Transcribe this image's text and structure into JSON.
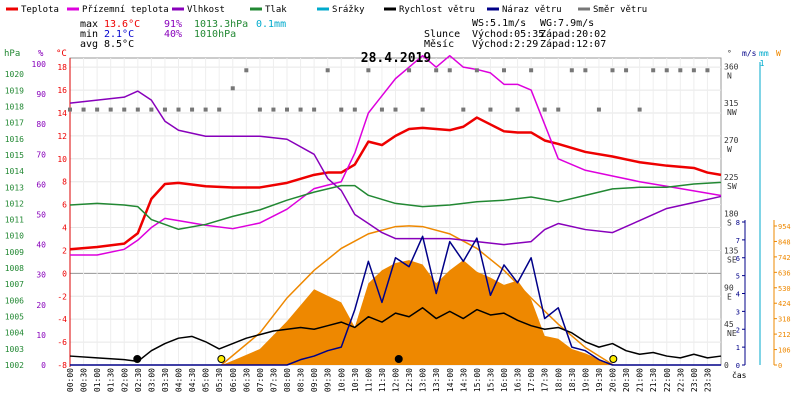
{
  "legend": [
    {
      "label": "Teplota",
      "color": "#ee0000"
    },
    {
      "label": "Přízemní teplota",
      "color": "#dd00dd"
    },
    {
      "label": "Vlhkost",
      "color": "#8800bb"
    },
    {
      "label": "Tlak",
      "color": "#228833"
    },
    {
      "label": "Srážky",
      "color": "#00aacc"
    },
    {
      "label": "Rychlost větru",
      "color": "#000000"
    },
    {
      "label": "Náraz větru",
      "color": "#000088"
    },
    {
      "label": "Směr větru",
      "color": "#777777"
    }
  ],
  "stats": {
    "max_label": "max",
    "max_temp": "13.6°C",
    "max_hum": "91%",
    "max_press": "1013.3hPa",
    "max_rain": "0.1mm",
    "min_label": "min",
    "min_temp": "2.1°C",
    "min_hum": "40%",
    "min_press": "1010hPa",
    "avg_label": "avg",
    "avg_temp": "8.5°C"
  },
  "wind_info": {
    "ws": "WS:5.1m/s",
    "wg": "WG:7.9m/s"
  },
  "sun": {
    "label": "Slunce",
    "rise": "Východ:05:35",
    "set": "Západ:20:02"
  },
  "moon": {
    "label": "Měsíc",
    "rise": "Východ:2:29",
    "set": "Západ:12:07"
  },
  "date_title": "28.4.2019",
  "axes": {
    "hpa_unit": "hPa",
    "pct_unit": "%",
    "c_unit": "°C",
    "dir_unit": "°",
    "ms_unit": "m/s",
    "mm_unit": "mm",
    "w_unit": "W",
    "x_label": "čas",
    "hpa_ticks": [
      "1020",
      "1019",
      "1018",
      "1017",
      "1016",
      "1015",
      "1014",
      "1013",
      "1012",
      "1011",
      "1010",
      "1009",
      "1008",
      "1007",
      "1006",
      "1005",
      "1004",
      "1003",
      "1002"
    ],
    "pct_ticks": [
      "100",
      "90",
      "80",
      "70",
      "60",
      "50",
      "40",
      "30",
      "20",
      "10",
      "0"
    ],
    "c_ticks": [
      "18",
      "16",
      "14",
      "12",
      "10",
      "8",
      "6",
      "4",
      "2",
      "0",
      "-2",
      "-4",
      "-6",
      "-8"
    ],
    "dir_ticks": [
      "360\nN",
      "315\nNW",
      "270\nW",
      "225\nSW",
      "180\nS",
      "135\nSE",
      "90\nE",
      "45\nNE",
      "0"
    ],
    "ms_ticks": [
      "8",
      "7",
      "6",
      "5",
      "4",
      "3",
      "2",
      "1",
      "0"
    ],
    "mm_ticks": [
      "1"
    ],
    "w_ticks": [
      "954",
      "848",
      "742",
      "636",
      "530",
      "424",
      "318",
      "212",
      "106",
      "0"
    ],
    "x_ticks": [
      "00:00",
      "00:30",
      "01:00",
      "01:30",
      "02:00",
      "02:30",
      "03:00",
      "03:30",
      "04:00",
      "04:30",
      "05:00",
      "05:30",
      "06:00",
      "06:30",
      "07:00",
      "07:30",
      "08:00",
      "08:30",
      "09:00",
      "09:30",
      "10:00",
      "10:30",
      "11:00",
      "11:30",
      "12:00",
      "12:30",
      "13:00",
      "13:30",
      "14:00",
      "14:30",
      "15:00",
      "15:30",
      "16:00",
      "16:30",
      "17:00",
      "17:30",
      "18:00",
      "18:30",
      "19:00",
      "19:30",
      "20:00",
      "20:30",
      "21:00",
      "21:30",
      "22:00",
      "22:30",
      "23:00",
      "23:30"
    ]
  },
  "chart_data": {
    "type": "line",
    "title": "28.4.2019",
    "x_unit": "hours",
    "series": [
      {
        "name": "Teplota",
        "color": "#ee0000",
        "axis": "°C",
        "x": [
          0,
          1,
          2,
          2.5,
          3,
          3.5,
          4,
          5,
          6,
          7,
          8,
          9,
          9.5,
          10,
          10.5,
          11,
          11.5,
          12,
          12.5,
          13,
          14,
          14.5,
          15,
          15.5,
          16,
          16.5,
          17,
          17.5,
          18,
          19,
          20,
          21,
          22,
          23,
          23.5,
          24
        ],
        "y": [
          2.1,
          2.3,
          2.6,
          3.5,
          6.5,
          7.8,
          7.9,
          7.6,
          7.5,
          7.5,
          7.9,
          8.6,
          8.8,
          8.8,
          9.5,
          11.5,
          11.2,
          12.0,
          12.6,
          12.7,
          12.5,
          12.8,
          13.6,
          13.0,
          12.4,
          12.3,
          12.3,
          11.6,
          11.3,
          10.6,
          10.2,
          9.7,
          9.4,
          9.2,
          8.8,
          8.6
        ]
      },
      {
        "name": "Přízemní teplota",
        "color": "#dd00dd",
        "axis": "°C",
        "x": [
          0,
          1,
          2,
          2.5,
          3,
          3.5,
          4,
          5,
          6,
          7,
          8,
          9,
          9.5,
          10,
          10.5,
          11,
          11.5,
          12,
          12.5,
          13,
          13.5,
          14,
          14.5,
          15,
          15.5,
          16,
          16.5,
          17,
          17.5,
          18,
          19,
          20,
          21,
          22,
          23,
          24
        ],
        "y": [
          1.6,
          1.6,
          2.1,
          2.9,
          4.0,
          4.8,
          4.6,
          4.2,
          3.9,
          4.4,
          5.6,
          7.4,
          7.7,
          8.0,
          10.5,
          14.0,
          15.5,
          17.0,
          18.0,
          19.0,
          18.0,
          19.0,
          18.0,
          17.8,
          17.5,
          16.5,
          16.5,
          16.0,
          13.0,
          10.0,
          9.0,
          8.5,
          8.0,
          7.6,
          7.2,
          6.8
        ]
      },
      {
        "name": "Vlhkost",
        "color": "#8800bb",
        "axis": "%",
        "x": [
          0,
          1,
          2,
          2.5,
          3,
          3.5,
          4,
          5,
          6,
          7,
          8,
          9,
          9.5,
          10,
          10.5,
          11,
          11.5,
          12,
          12.5,
          13,
          14,
          15,
          16,
          17,
          17.5,
          18,
          19,
          20,
          21,
          22,
          23,
          24
        ],
        "y": [
          87,
          88,
          89,
          91,
          88,
          81,
          78,
          76,
          76,
          76,
          75,
          70,
          62,
          58,
          50,
          47,
          44,
          42,
          42,
          42,
          42,
          41,
          40,
          41,
          45,
          47,
          45,
          44,
          48,
          52,
          54,
          56
        ]
      },
      {
        "name": "Tlak",
        "color": "#228833",
        "axis": "hPa",
        "x": [
          0,
          1,
          2,
          2.5,
          3,
          3.5,
          4,
          5,
          6,
          7,
          8,
          9,
          10,
          10.5,
          11,
          12,
          13,
          14,
          15,
          16,
          17,
          18,
          19,
          20,
          21,
          22,
          23,
          24
        ],
        "y": [
          1011.9,
          1012.0,
          1011.9,
          1011.8,
          1011.0,
          1010.7,
          1010.4,
          1010.7,
          1011.2,
          1011.6,
          1012.2,
          1012.7,
          1013.1,
          1013.1,
          1012.5,
          1012.0,
          1011.8,
          1011.9,
          1012.1,
          1012.2,
          1012.4,
          1012.1,
          1012.5,
          1012.9,
          1013.0,
          1013.0,
          1013.2,
          1013.3
        ]
      },
      {
        "name": "Rychlost větru",
        "color": "#000000",
        "axis": "m/s",
        "x": [
          0,
          1,
          2,
          2.5,
          3,
          3.5,
          4,
          4.5,
          5,
          5.5,
          6,
          6.5,
          7,
          7.5,
          8,
          8.5,
          9,
          9.5,
          10,
          10.5,
          11,
          11.5,
          12,
          12.5,
          13,
          13.5,
          14,
          14.5,
          15,
          15.5,
          16,
          16.5,
          17,
          17.5,
          18,
          18.5,
          19,
          19.5,
          20,
          20.5,
          21,
          21.5,
          22,
          22.5,
          23,
          23.5,
          24
        ],
        "y": [
          0.5,
          0.4,
          0.3,
          0.2,
          0.8,
          1.2,
          1.5,
          1.6,
          1.3,
          0.9,
          1.2,
          1.5,
          1.7,
          1.9,
          2.0,
          2.1,
          2.0,
          2.2,
          2.4,
          2.1,
          2.7,
          2.4,
          2.9,
          2.7,
          3.2,
          2.6,
          3.0,
          2.6,
          3.1,
          2.8,
          2.9,
          2.5,
          2.2,
          2.0,
          2.1,
          1.8,
          1.3,
          1.0,
          1.2,
          0.8,
          0.6,
          0.7,
          0.5,
          0.4,
          0.6,
          0.4,
          0.5
        ]
      },
      {
        "name": "Náraz větru",
        "color": "#000088",
        "axis": "m/s",
        "x": [
          0,
          1,
          2,
          3,
          4,
          5,
          6,
          6.5,
          7,
          7.5,
          8,
          8.5,
          9,
          9.5,
          10,
          10.5,
          11,
          11.5,
          12,
          12.5,
          13,
          13.5,
          14,
          14.5,
          15,
          15.5,
          16,
          16.5,
          17,
          17.5,
          18,
          18.5,
          19,
          19.5,
          20,
          21,
          22,
          23,
          24
        ],
        "y": [
          0,
          0,
          0,
          0,
          0,
          0,
          0,
          0,
          0,
          0,
          0,
          0.3,
          0.5,
          0.8,
          1.0,
          3.1,
          5.8,
          3.5,
          6.0,
          5.5,
          7.2,
          4.0,
          6.9,
          5.8,
          7.1,
          3.9,
          5.6,
          4.6,
          6.0,
          2.6,
          3.2,
          1.0,
          0.8,
          0.3,
          0,
          0,
          0,
          0,
          0
        ]
      },
      {
        "name": "Směr větru",
        "color": "#777777",
        "axis": "°",
        "x": [
          0,
          0.5,
          1,
          1.5,
          2,
          2.5,
          3,
          3.5,
          4,
          4.5,
          5,
          5.5,
          6,
          6.5,
          7,
          7.5,
          8,
          8.5,
          9,
          9.5,
          10,
          10.5,
          11,
          11.5,
          12,
          12.5,
          13,
          13.5,
          14,
          14.5,
          15,
          15.5,
          16,
          16.5,
          17,
          17.5,
          18,
          18.5,
          19,
          19.5,
          20,
          20.5,
          21,
          21.5,
          22,
          22.5,
          23,
          23.5
        ],
        "y": [
          312,
          312,
          312,
          312,
          312,
          312,
          312,
          312,
          312,
          312,
          312,
          312,
          338,
          360,
          312,
          312,
          312,
          312,
          312,
          360,
          312,
          312,
          360,
          312,
          312,
          360,
          312,
          360,
          360,
          312,
          360,
          312,
          360,
          312,
          360,
          312,
          312,
          360,
          360,
          312,
          360,
          360,
          312,
          360,
          360,
          360,
          360,
          360
        ]
      }
    ],
    "solar_radiation": {
      "name": "Solární záření",
      "color": "#ee8800",
      "axis": "W",
      "x": [
        5.6,
        6,
        7,
        8,
        9,
        10,
        10.5,
        11,
        11.5,
        12,
        12.5,
        13,
        13.5,
        14,
        14.5,
        15,
        15.5,
        16,
        16.5,
        17,
        17.5,
        18,
        18.5,
        19,
        19.5,
        20
      ],
      "y": [
        0,
        30,
        110,
        300,
        520,
        430,
        260,
        560,
        650,
        700,
        720,
        690,
        560,
        650,
        720,
        640,
        600,
        550,
        580,
        450,
        200,
        180,
        110,
        80,
        40,
        0
      ]
    },
    "solar_theoretical": {
      "name": "Teoretické záření",
      "color": "#ee8800",
      "x": [
        5.58,
        7,
        8,
        9,
        10,
        11,
        12,
        12.5,
        13,
        14,
        15,
        16,
        17,
        18,
        19,
        20.03
      ],
      "y": [
        0,
        220,
        460,
        650,
        800,
        900,
        950,
        955,
        950,
        900,
        800,
        650,
        460,
        280,
        120,
        0
      ]
    }
  }
}
